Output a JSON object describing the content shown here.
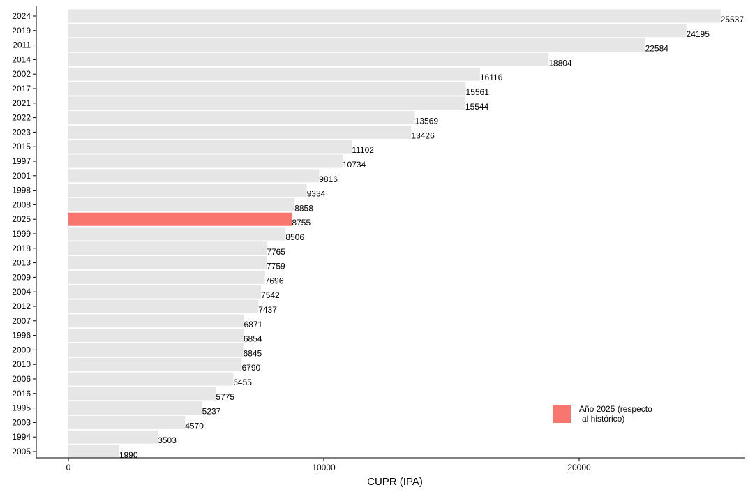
{
  "chart_data": {
    "type": "bar",
    "orientation": "horizontal",
    "title": "",
    "xlabel": "CUPR (IPA)",
    "ylabel": "",
    "xlim": [
      0,
      26000
    ],
    "x_ticks": [
      0,
      10000,
      20000
    ],
    "grid": false,
    "legend_position": "bottom-right",
    "colors": {
      "base": "#e6e6e6",
      "highlight": "#f8766d"
    },
    "categories": [
      "2024",
      "2019",
      "2011",
      "2014",
      "2002",
      "2017",
      "2021",
      "2022",
      "2023",
      "2015",
      "1997",
      "2001",
      "1998",
      "2008",
      "2025",
      "1999",
      "2018",
      "2013",
      "2009",
      "2004",
      "2012",
      "2007",
      "1996",
      "2000",
      "2010",
      "2006",
      "2016",
      "1995",
      "2003",
      "1994",
      "2005"
    ],
    "values": [
      25537,
      24195,
      22584,
      18804,
      16116,
      15561,
      15544,
      13569,
      13426,
      11102,
      10734,
      9816,
      9334,
      8858,
      8755,
      8506,
      7765,
      7759,
      7696,
      7542,
      7437,
      6871,
      6854,
      6845,
      6790,
      6455,
      5775,
      5237,
      4570,
      3503,
      1990
    ],
    "highlight_category": "2025",
    "legend": [
      {
        "label": "Año 2025 (respecto",
        "label_line2": "al histórico)",
        "color": "#f8766d"
      }
    ]
  }
}
